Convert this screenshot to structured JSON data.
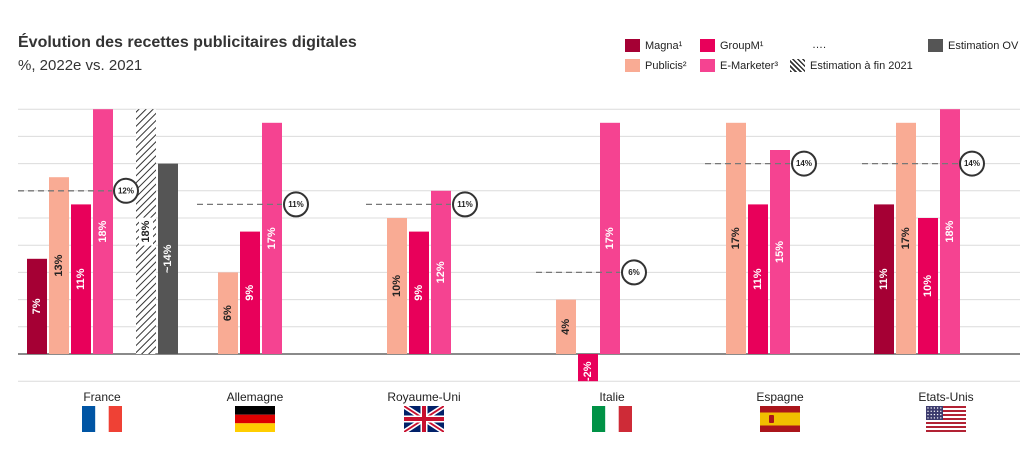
{
  "header": {
    "title": "Évolution des recettes publicitaires digitales",
    "subtitle": "%, 2022e vs. 2021"
  },
  "legend": [
    {
      "key": "magna",
      "label": "Magna¹",
      "color": "#a50034",
      "style": "solid"
    },
    {
      "key": "groupm",
      "label": "GroupM¹",
      "color": "#e8005a",
      "style": "solid"
    },
    {
      "key": "ellipsis",
      "label": "….",
      "color": "",
      "style": "none"
    },
    {
      "key": "ov",
      "label": "Estimation OV",
      "color": "#555555",
      "style": "solid"
    },
    {
      "key": "publicis",
      "label": "Publicis²",
      "color": "#f9ab94",
      "style": "solid"
    },
    {
      "key": "emarketer",
      "label": "E-Marketer³",
      "color": "#f54391",
      "style": "solid"
    },
    {
      "key": "est2021",
      "label": "Estimation à fin 2021",
      "color": "#333333",
      "style": "hatch"
    }
  ],
  "chart_data": {
    "type": "bar",
    "ylim": [
      -2,
      19
    ],
    "grid": true,
    "categories": [
      "France",
      "Allemagne",
      "Royaume-Uni",
      "Italie",
      "Espagne",
      "Etats-Unis"
    ],
    "series": [
      {
        "name": "Magna¹",
        "color": "#a50034",
        "values": [
          7,
          null,
          null,
          null,
          null,
          11
        ],
        "labels": [
          "7%",
          "",
          "",
          "",
          "",
          "11%"
        ]
      },
      {
        "name": "Publicis²",
        "color": "#f9ab94",
        "values": [
          13,
          6,
          10,
          4,
          17,
          17
        ],
        "labels": [
          "13%",
          "6%",
          "10%",
          "4%",
          "17%",
          "17%"
        ]
      },
      {
        "name": "GroupM¹",
        "color": "#e8005a",
        "values": [
          11,
          9,
          9,
          -2,
          11,
          10
        ],
        "labels": [
          "11%",
          "9%",
          "9%",
          "-2%",
          "11%",
          "10%"
        ]
      },
      {
        "name": "E-Marketer³",
        "color": "#f54391",
        "values": [
          18,
          17,
          12,
          17,
          15,
          18
        ],
        "labels": [
          "18%",
          "17%",
          "12%",
          "17%",
          "15%",
          "18%"
        ]
      },
      {
        "name": "Estimation à fin 2021",
        "color": "hatch",
        "values": [
          18,
          null,
          null,
          null,
          null,
          null
        ],
        "labels": [
          "18%",
          "",
          "",
          "",
          "",
          ""
        ]
      },
      {
        "name": "Estimation OV",
        "color": "#555555",
        "values": [
          14,
          null,
          null,
          null,
          null,
          null
        ],
        "labels": [
          "~14%",
          "",
          "",
          "",
          "",
          ""
        ]
      }
    ],
    "averages": [
      12,
      11,
      11,
      6,
      14,
      14
    ],
    "average_labels": [
      "12%",
      "11%",
      "11%",
      "6%",
      "14%",
      "14%"
    ]
  }
}
